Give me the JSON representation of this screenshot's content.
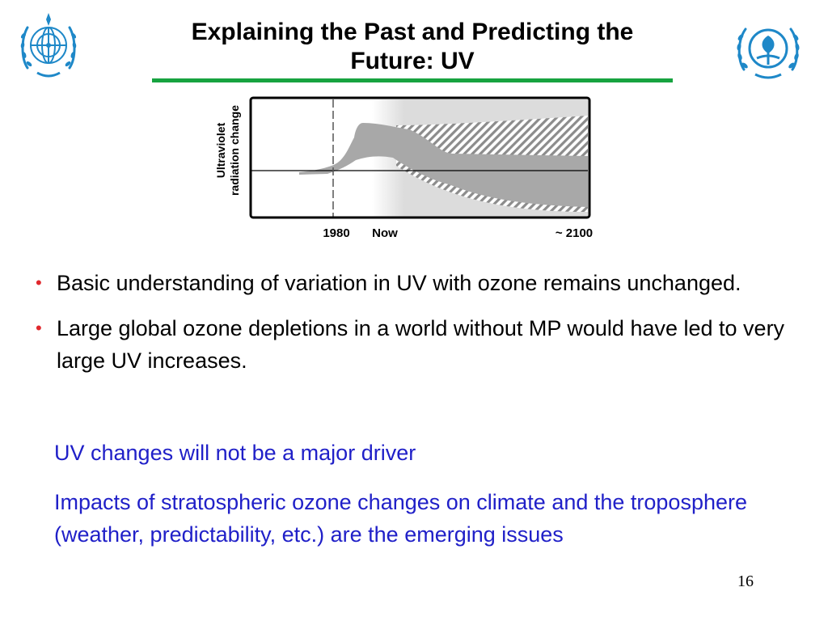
{
  "slide": {
    "title": "Explaining the Past and Predicting the Future: UV",
    "figure": {
      "y_axis_label_line1": "Ultraviolet",
      "y_axis_label_line2": "radiation change",
      "x_tick_labels": [
        "1980",
        "Now",
        "~ 2100"
      ]
    },
    "bullets": [
      "Basic understanding of variation in UV with ozone remains unchanged.",
      "Large global ozone depletions in a world without MP would have led to very large UV increases."
    ],
    "highlight_statements": [
      "UV changes will not be a major driver",
      "Impacts of stratospheric ozone changes on climate and the troposphere (weather, predictability, etc.) are the emerging issues"
    ],
    "page_number": "16",
    "colors": {
      "title_rule": "#17a340",
      "bullet_marker": "#e0282d",
      "highlight_text": "#2020c8",
      "logo_blue": "#1e88c8"
    },
    "logos": [
      "wmo-emblem-icon",
      "unep-emblem-icon"
    ]
  }
}
